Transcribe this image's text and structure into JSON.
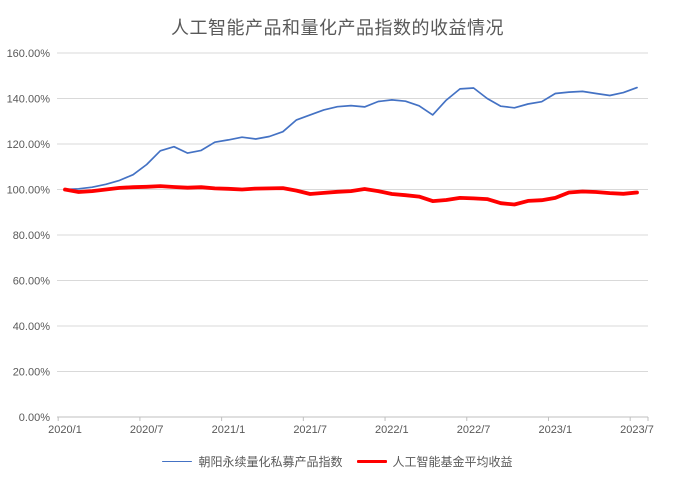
{
  "chart_data": {
    "type": "line",
    "title": "人工智能产品和量化产品指数的收益情况",
    "xlabel": "",
    "ylabel": "",
    "x_note": "monthly points from 2020/1 to 2023/7",
    "x_tick_labels": [
      "2020/1",
      "2020/7",
      "2021/1",
      "2021/7",
      "2022/1",
      "2022/7",
      "2023/1",
      "2023/7"
    ],
    "y_tick_labels": [
      "0.00%",
      "20.00%",
      "40.00%",
      "60.00%",
      "80.00%",
      "100.00%",
      "120.00%",
      "140.00%",
      "160.00%"
    ],
    "ylim": [
      0,
      160
    ],
    "y_step": 20,
    "grid": "horizontal",
    "legend_position": "bottom",
    "categories": [
      "2020/1",
      "2020/2",
      "2020/3",
      "2020/4",
      "2020/5",
      "2020/6",
      "2020/7",
      "2020/8",
      "2020/9",
      "2020/10",
      "2020/11",
      "2020/12",
      "2021/1",
      "2021/2",
      "2021/3",
      "2021/4",
      "2021/5",
      "2021/6",
      "2021/7",
      "2021/8",
      "2021/9",
      "2021/10",
      "2021/11",
      "2021/12",
      "2022/1",
      "2022/2",
      "2022/3",
      "2022/4",
      "2022/5",
      "2022/6",
      "2022/7",
      "2022/8",
      "2022/9",
      "2022/10",
      "2022/11",
      "2022/12",
      "2023/1",
      "2023/2",
      "2023/3",
      "2023/4",
      "2023/5",
      "2023/6",
      "2023/7"
    ],
    "series": [
      {
        "name": "朝阳永续量化私募产品指数",
        "color": "#4472C4",
        "stroke_width": 1.7,
        "values": [
          100.0,
          100.3,
          101.0,
          102.3,
          104.0,
          106.5,
          111.0,
          117.0,
          118.8,
          116.0,
          117.2,
          120.8,
          121.8,
          123.0,
          122.2,
          123.3,
          125.4,
          130.6,
          132.8,
          135.0,
          136.4,
          136.9,
          136.3,
          138.7,
          139.4,
          138.8,
          136.8,
          132.8,
          139.3,
          144.2,
          144.6,
          140.0,
          136.6,
          135.9,
          137.6,
          138.6,
          142.2,
          142.8,
          143.1,
          142.2,
          141.3,
          142.6,
          144.8
        ]
      },
      {
        "name": "人工智能基金平均收益",
        "color": "#FF0000",
        "stroke_width": 3.8,
        "values": [
          100.0,
          98.9,
          99.3,
          100.0,
          100.7,
          101.0,
          101.2,
          101.5,
          101.1,
          100.8,
          101.0,
          100.5,
          100.3,
          100.0,
          100.4,
          100.5,
          100.6,
          99.5,
          98.0,
          98.5,
          99.0,
          99.3,
          100.2,
          99.3,
          98.0,
          97.5,
          96.9,
          94.9,
          95.4,
          96.3,
          96.1,
          95.8,
          94.0,
          93.4,
          95.0,
          95.3,
          96.3,
          98.7,
          99.1,
          98.9,
          98.4,
          98.1,
          98.7
        ]
      }
    ],
    "colors": {
      "gridline": "#D9D9D9",
      "axis_line": "#BFBFBF",
      "tick_label": "#595959",
      "title": "#595959"
    }
  }
}
